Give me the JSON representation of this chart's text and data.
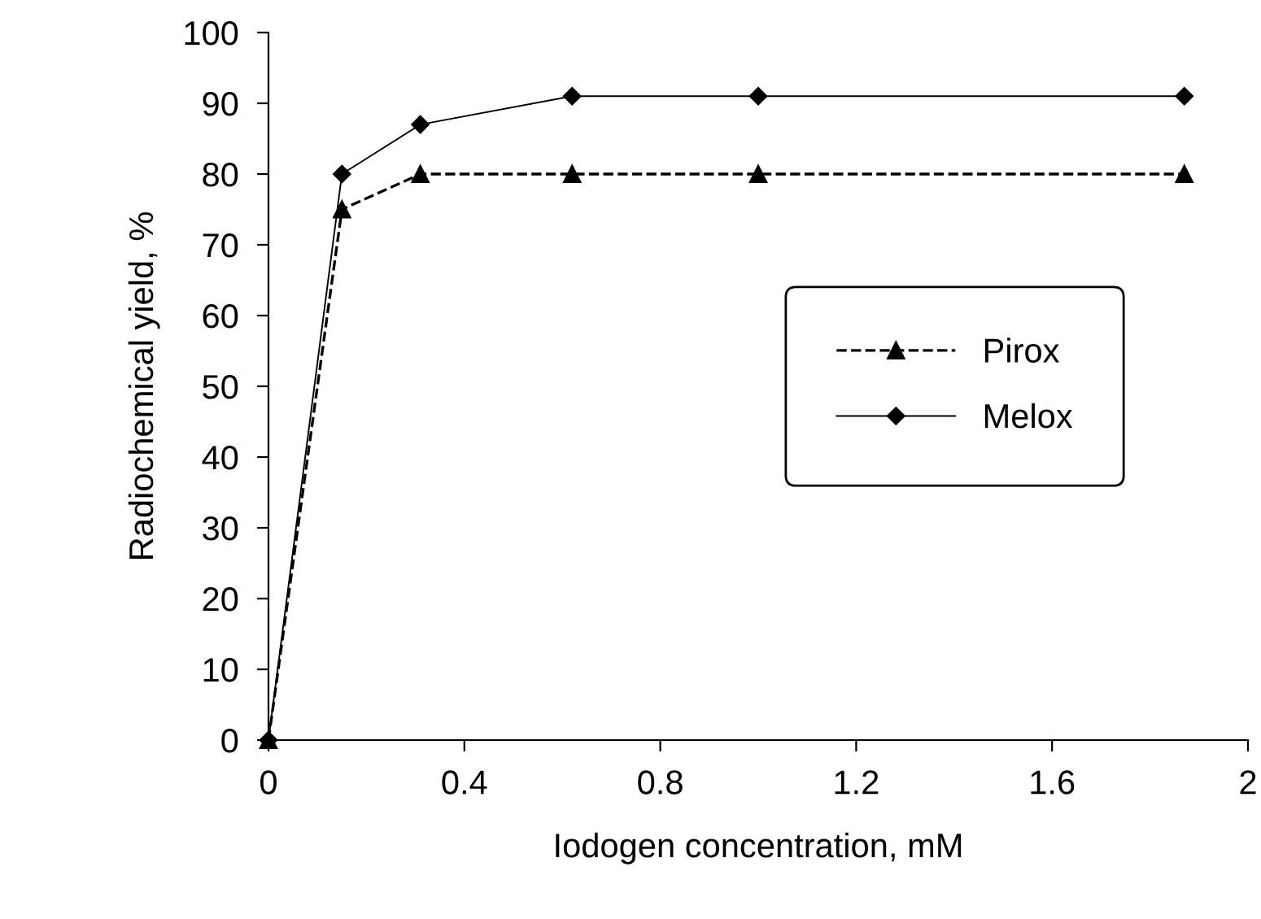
{
  "chart_data": {
    "type": "line",
    "xlabel": "Iodogen concentration, mM",
    "ylabel": "Radiochemical yield, %",
    "x": [
      0,
      0.15,
      0.31,
      0.62,
      1.0,
      1.87
    ],
    "series": [
      {
        "name": "Pirox",
        "color": "#000000",
        "values": [
          0,
          75,
          80,
          80,
          80,
          80
        ],
        "marker": "triangle",
        "line_style": "dashed"
      },
      {
        "name": "Melox",
        "color": "#000000",
        "values": [
          0,
          80,
          87,
          91,
          91,
          91
        ],
        "marker": "diamond",
        "line_style": "solid"
      }
    ],
    "xlim": [
      0,
      2
    ],
    "xticks": [
      0,
      0.4,
      0.8,
      1.2,
      1.6,
      2
    ],
    "ylim": [
      0,
      100
    ],
    "yticks": [
      0,
      10,
      20,
      30,
      40,
      50,
      60,
      70,
      80,
      90,
      100
    ],
    "grid": false,
    "legend": "center right"
  }
}
